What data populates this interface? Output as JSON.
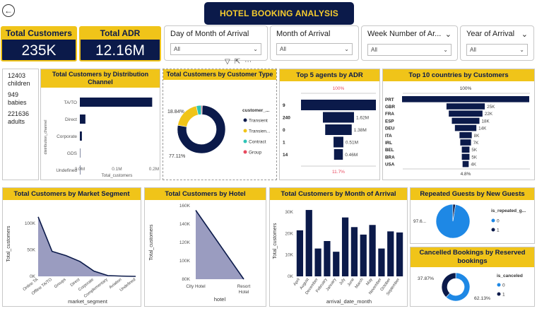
{
  "header": {
    "title": "HOTEL BOOKING ANALYSIS",
    "back_icon": "arrow-left-icon",
    "toolbar_icons": [
      "filter-icon",
      "expand-icon",
      "more-icon"
    ]
  },
  "kpis": [
    {
      "label": "Total Customers",
      "value": "235K"
    },
    {
      "label": "Total ADR",
      "value": "12.16M"
    }
  ],
  "slicers": [
    {
      "label": "Day of Month of Arrival",
      "value": "All"
    },
    {
      "label": "Month of Arrival",
      "value": "All"
    },
    {
      "label": "Week Number of Ar...",
      "value": "All"
    },
    {
      "label": "Year of Arrival",
      "value": "All"
    }
  ],
  "guests_card": [
    {
      "value": "12403",
      "label": "children"
    },
    {
      "value": "949",
      "label": "babies"
    },
    {
      "value": "221636",
      "label": "adults"
    }
  ],
  "colors": {
    "navy": "#0b1a4a",
    "yellow": "#f0c419",
    "area": "#9a9cc0",
    "blue": "#1e88e5",
    "teal": "#2ec4b6",
    "red": "#e84a5f"
  },
  "distribution_channel": {
    "title": "Total Customers by Distribution Channel",
    "ylabel": "distribution_channel",
    "xlabel": "Total_customers",
    "categories": [
      "TA/TO",
      "Direct",
      "Corporate",
      "GDS",
      "Undefined"
    ],
    "values": [
      195000,
      15000,
      5500,
      200,
      5
    ],
    "xticks": [
      "0.0M",
      "0.1M",
      "0.2M"
    ],
    "xlim": [
      0,
      200000
    ]
  },
  "customer_type": {
    "title": "Total Customers by Customer Type",
    "legend_title": "customer_...",
    "labels": [
      "Transient",
      "Transien...",
      "Contract",
      "Group"
    ],
    "values": [
      77.11,
      18.84,
      3.41,
      0.64
    ],
    "label_a": "18.84%",
    "label_b": "77.11%",
    "colors": [
      "#0b1a4a",
      "#f0c419",
      "#2ec4b6",
      "#e84a5f"
    ]
  },
  "agents": {
    "title": "Top 5 agents by ADR",
    "top_pct": "100%",
    "bottom_pct": "11.7%",
    "categories": [
      "9",
      "240",
      "0",
      "1",
      "14"
    ],
    "values": [
      3.9,
      1.62,
      1.38,
      0.51,
      0.46
    ],
    "value_labels": [
      "",
      "1.62M",
      "1.38M",
      "0.51M",
      "0.46M"
    ]
  },
  "countries": {
    "title": "Top 10 countries by Customers",
    "top_pct": "100%",
    "bottom_pct": "4.8%",
    "categories": [
      "PRT",
      "GBR",
      "FRA",
      "ESP",
      "DEU",
      "ITA",
      "IRL",
      "BEL",
      "BRA",
      "USA"
    ],
    "values": [
      83,
      25,
      22,
      18,
      14,
      8,
      7,
      5,
      5,
      4
    ],
    "value_labels": [
      "",
      "25K",
      "22K",
      "18K",
      "14K",
      "8K",
      "7K",
      "5K",
      "5K",
      "4K"
    ]
  },
  "market_segment": {
    "title": "Total Customers by Market Segment",
    "xlabel": "market_segment",
    "ylabel": "Total_customers",
    "categories": [
      "Online TA",
      "Offline TA/TO",
      "Groups",
      "Direct",
      "Corporate",
      "Complementary",
      "Aviation",
      "Undefined"
    ],
    "values": [
      112000,
      47000,
      39000,
      28000,
      10000,
      1500,
      500,
      5
    ],
    "yticks": [
      "0K",
      "50K",
      "100K"
    ],
    "ylim": [
      0,
      125000
    ]
  },
  "hotel": {
    "title": "Total Customers by Hotel",
    "xlabel": "hotel",
    "ylabel": "Total_customers",
    "categories": [
      "City Hotel",
      "Resort\nHotel"
    ],
    "values": [
      155000,
      80000
    ],
    "yticks": [
      "80K",
      "100K",
      "120K",
      "140K",
      "160K"
    ],
    "ylim": [
      80000,
      160000
    ]
  },
  "month_arrival": {
    "title": "Total Customers by Month of Arrival",
    "xlabel": "arrival_date_month",
    "ylabel": "Total_customers",
    "categories": [
      "April",
      "August",
      "December",
      "February",
      "January",
      "July",
      "June",
      "March",
      "May",
      "November",
      "October",
      "September"
    ],
    "values": [
      21500,
      31000,
      13000,
      16500,
      11500,
      27500,
      23000,
      19500,
      24000,
      13000,
      21000,
      20500
    ],
    "yticks": [
      "0K",
      "10K",
      "20K",
      "30K"
    ],
    "ylim": [
      0,
      33000
    ]
  },
  "repeated_guests": {
    "title": "Repeated Guests by New Guests",
    "legend_title": "is_repeated_g...",
    "labels": [
      "0",
      "1"
    ],
    "values": [
      97.6,
      2.4
    ],
    "label_a": "97.6...",
    "colors": [
      "#1e88e5",
      "#0b1a4a"
    ]
  },
  "cancelled": {
    "title": "Cancelled Bookings by Reserved bookings",
    "legend_title": "is_canceled",
    "labels": [
      "0",
      "1"
    ],
    "values": [
      62.13,
      37.87
    ],
    "label_a": "37.87%",
    "label_b": "62.13%",
    "colors": [
      "#1e88e5",
      "#0b1a4a"
    ]
  }
}
